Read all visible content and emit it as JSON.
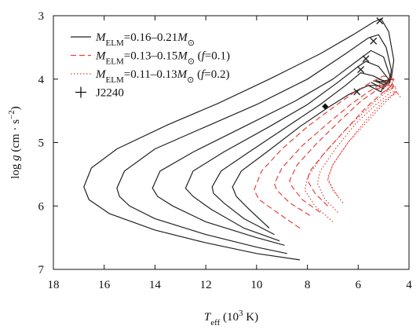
{
  "chart_data": {
    "type": "line",
    "xlabel": [
      {
        "text": "T",
        "style": "italic"
      },
      {
        "text": "eff",
        "style": "sub"
      },
      {
        "text": " (10"
      },
      {
        "text": "3",
        "style": "sup"
      },
      {
        "text": " K)"
      }
    ],
    "ylabel": [
      {
        "text": "log "
      },
      {
        "text": "g",
        "style": "italic"
      },
      {
        "text": " (cm · s"
      },
      {
        "text": "−2",
        "style": "sup"
      },
      {
        "text": ")"
      }
    ],
    "xlim": [
      18,
      4
    ],
    "ylim": [
      3,
      7
    ],
    "xticks": [
      18,
      16,
      14,
      12,
      10,
      8,
      6,
      4
    ],
    "yticks": [
      3,
      4,
      5,
      6,
      7
    ],
    "series": [
      {
        "name": [
          {
            "text": "M",
            "style": "italic"
          },
          {
            "text": "ELM",
            "style": "sub"
          },
          {
            "text": "=0.16–0.21"
          },
          {
            "text": "M",
            "style": "italic"
          },
          {
            "text": "⊙",
            "style": "sub"
          }
        ],
        "color": "#222222",
        "dash": "solid",
        "tracks": [
          {
            "x": [
              8.3,
              10,
              12,
              14,
              15.8,
              16.6,
              16.8,
              16.5,
              15.5,
              13.5,
              11.5,
              9.5,
              7.5,
              6.2,
              5.4,
              5.1,
              4.8,
              4.6,
              4.7,
              5.2
            ],
            "y": [
              6.85,
              6.75,
              6.58,
              6.38,
              6.12,
              5.9,
              5.7,
              5.4,
              5.1,
              4.72,
              4.38,
              4.0,
              3.6,
              3.3,
              3.1,
              3.05,
              3.25,
              3.7,
              4.0,
              4.05
            ]
          },
          {
            "x": [
              8.8,
              10,
              12,
              14,
              15,
              15.4,
              15.5,
              15.2,
              14,
              12,
              10,
              8,
              6.5,
              5.6,
              5.2,
              4.9,
              4.7,
              4.75,
              5.2
            ],
            "y": [
              6.75,
              6.65,
              6.45,
              6.2,
              6.0,
              5.85,
              5.72,
              5.45,
              5.1,
              4.75,
              4.4,
              4.0,
              3.6,
              3.35,
              3.3,
              3.5,
              3.85,
              4.05,
              4.0
            ]
          },
          {
            "x": [
              8.9,
              10,
              12,
              13.3,
              13.9,
              14.1,
              13.8,
              12.5,
              10.5,
              8.5,
              7,
              6,
              5.5,
              5.0,
              4.75,
              4.8,
              5.3
            ],
            "y": [
              6.62,
              6.5,
              6.25,
              6.0,
              5.85,
              5.72,
              5.45,
              5.15,
              4.75,
              4.35,
              4.0,
              3.7,
              3.55,
              3.65,
              3.95,
              4.08,
              4.02
            ]
          },
          {
            "x": [
              9.1,
              10.5,
              11.8,
              12.5,
              12.8,
              12.5,
              11.3,
              9.5,
              8,
              6.8,
              6,
              5.7,
              5.2,
              4.8,
              4.9,
              5.4
            ],
            "y": [
              6.55,
              6.35,
              6.05,
              5.85,
              5.72,
              5.45,
              5.15,
              4.75,
              4.4,
              4.05,
              3.8,
              3.72,
              3.8,
              4.0,
              4.1,
              4.02
            ]
          },
          {
            "x": [
              9.3,
              10.5,
              11.3,
              11.7,
              11.75,
              11.4,
              10.3,
              8.8,
              7.5,
              6.5,
              5.9,
              5.4,
              4.9,
              5.0,
              5.5
            ],
            "y": [
              6.45,
              6.2,
              5.95,
              5.8,
              5.7,
              5.45,
              5.15,
              4.75,
              4.4,
              4.1,
              3.9,
              3.95,
              4.05,
              4.15,
              4.05
            ]
          },
          {
            "x": [
              9.5,
              10.3,
              10.8,
              10.95,
              10.6,
              9.6,
              8.3,
              7.2,
              6.4,
              6.05,
              5.6,
              5.0,
              5.1,
              5.6
            ],
            "y": [
              6.35,
              6.05,
              5.85,
              5.7,
              5.45,
              5.15,
              4.75,
              4.45,
              4.25,
              4.18,
              4.1,
              4.1,
              4.2,
              4.1
            ]
          }
        ]
      },
      {
        "name": [
          {
            "text": "M",
            "style": "italic"
          },
          {
            "text": "ELM",
            "style": "sub"
          },
          {
            "text": "=0.13–0.15"
          },
          {
            "text": "M",
            "style": "italic"
          },
          {
            "text": "⊙",
            "style": "sub"
          },
          {
            "text": " ("
          },
          {
            "text": "f",
            "style": "italic"
          },
          {
            "text": "=0.1)"
          }
        ],
        "color": "#e2453c",
        "dash": "dashed",
        "tracks": [
          {
            "x": [
              8.3,
              9.2,
              9.9,
              10.1,
              9.8,
              9.0,
              8.0,
              7.0,
              6.2,
              5.5,
              5.0,
              4.6,
              4.7,
              5.3
            ],
            "y": [
              6.35,
              6.1,
              5.9,
              5.75,
              5.45,
              5.1,
              4.75,
              4.45,
              4.22,
              4.05,
              3.95,
              4.0,
              4.1,
              4.15
            ]
          },
          {
            "x": [
              7.9,
              8.7,
              9.2,
              9.3,
              9.0,
              8.2,
              7.2,
              6.3,
              5.6,
              5.0,
              4.6,
              4.7,
              5.2
            ],
            "y": [
              6.15,
              5.95,
              5.75,
              5.65,
              5.4,
              5.05,
              4.7,
              4.4,
              4.2,
              4.05,
              4.0,
              4.1,
              4.1
            ]
          },
          {
            "x": [
              7.5,
              8.2,
              8.6,
              8.7,
              8.4,
              7.6,
              6.7,
              5.9,
              5.2,
              4.7,
              4.6,
              5.0
            ],
            "y": [
              6.1,
              5.9,
              5.7,
              5.6,
              5.35,
              5.0,
              4.65,
              4.35,
              4.15,
              4.05,
              4.12,
              4.2
            ]
          },
          {
            "x": [
              7.2,
              7.7,
              8.0,
              7.9,
              7.3,
              6.5,
              5.7,
              5.0,
              4.6,
              4.75
            ],
            "y": [
              6.0,
              5.8,
              5.6,
              5.45,
              5.15,
              4.8,
              4.45,
              4.2,
              4.08,
              4.2
            ]
          }
        ]
      },
      {
        "name": [
          {
            "text": "M",
            "style": "italic"
          },
          {
            "text": "ELM",
            "style": "sub"
          },
          {
            "text": "=0.11–0.13"
          },
          {
            "text": "M",
            "style": "italic"
          },
          {
            "text": "⊙",
            "style": "sub"
          },
          {
            "text": " ("
          },
          {
            "text": "f",
            "style": "italic"
          },
          {
            "text": "=0.2)"
          }
        ],
        "color": "#e2453c",
        "dash": "dotted",
        "tracks": [
          {
            "x": [
              7.0,
              7.7,
              8.1,
              8.0,
              7.4,
              6.5,
              5.6,
              4.9,
              4.5,
              4.6
            ],
            "y": [
              6.25,
              6.0,
              5.75,
              5.55,
              5.2,
              4.8,
              4.45,
              4.2,
              4.12,
              4.25
            ]
          },
          {
            "x": [
              6.8,
              7.3,
              7.6,
              7.5,
              6.9,
              6.1,
              5.3,
              4.7,
              4.45
            ],
            "y": [
              6.1,
              5.9,
              5.65,
              5.45,
              5.1,
              4.7,
              4.4,
              4.2,
              4.2
            ]
          },
          {
            "x": [
              6.6,
              7.0,
              7.2,
              7.0,
              6.4,
              5.6,
              4.9,
              4.5,
              4.4
            ],
            "y": [
              5.95,
              5.75,
              5.55,
              5.35,
              5.0,
              4.65,
              4.35,
              4.2,
              4.25
            ]
          },
          {
            "x": [
              6.8,
              7.2,
              7.0,
              6.4,
              5.7,
              5.0,
              4.5,
              4.3
            ],
            "y": [
              5.85,
              5.6,
              5.35,
              5.0,
              4.65,
              4.35,
              4.2,
              4.3
            ]
          }
        ]
      }
    ],
    "markers": {
      "color": "#222222",
      "x": [
        5.15,
        5.4,
        5.7,
        5.9,
        6.05
      ],
      "y": [
        3.08,
        3.4,
        3.68,
        3.85,
        4.2
      ]
    },
    "point": {
      "name": "J2240",
      "color": "#111111",
      "x": 7.3,
      "y": 4.43
    }
  }
}
